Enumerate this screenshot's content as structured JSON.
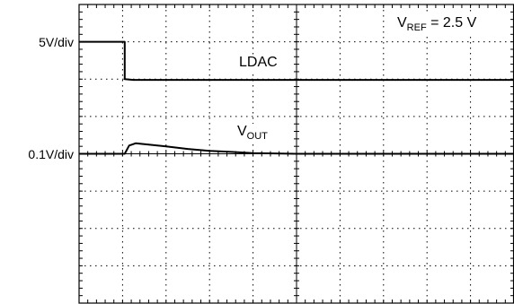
{
  "chart_data": {
    "type": "line",
    "title": "",
    "grid": true,
    "divisions": {
      "horizontal": 10,
      "vertical": 8
    },
    "annotation": {
      "prefix": "V",
      "subscript": "REF",
      "suffix": " = 2.5 V"
    },
    "channels": [
      {
        "name": "LDAC",
        "scale_label": "5V/div",
        "ground_div": 7,
        "points": [
          [
            0,
            7.0
          ],
          [
            1.05,
            7.0
          ],
          [
            1.05,
            6.0
          ],
          [
            1.25,
            5.98
          ],
          [
            10,
            5.98
          ]
        ]
      },
      {
        "name_prefix": "V",
        "name_subscript": "OUT",
        "scale_label": "0.1V/div",
        "ground_div": 4,
        "points": [
          [
            0,
            4.0
          ],
          [
            1.05,
            4.0
          ],
          [
            1.15,
            4.22
          ],
          [
            1.3,
            4.28
          ],
          [
            1.5,
            4.26
          ],
          [
            2.0,
            4.2
          ],
          [
            2.5,
            4.13
          ],
          [
            3.0,
            4.08
          ],
          [
            3.5,
            4.05
          ],
          [
            4.0,
            4.02
          ],
          [
            4.5,
            4.01
          ],
          [
            5.0,
            4.0
          ],
          [
            10,
            4.0
          ]
        ]
      }
    ]
  }
}
